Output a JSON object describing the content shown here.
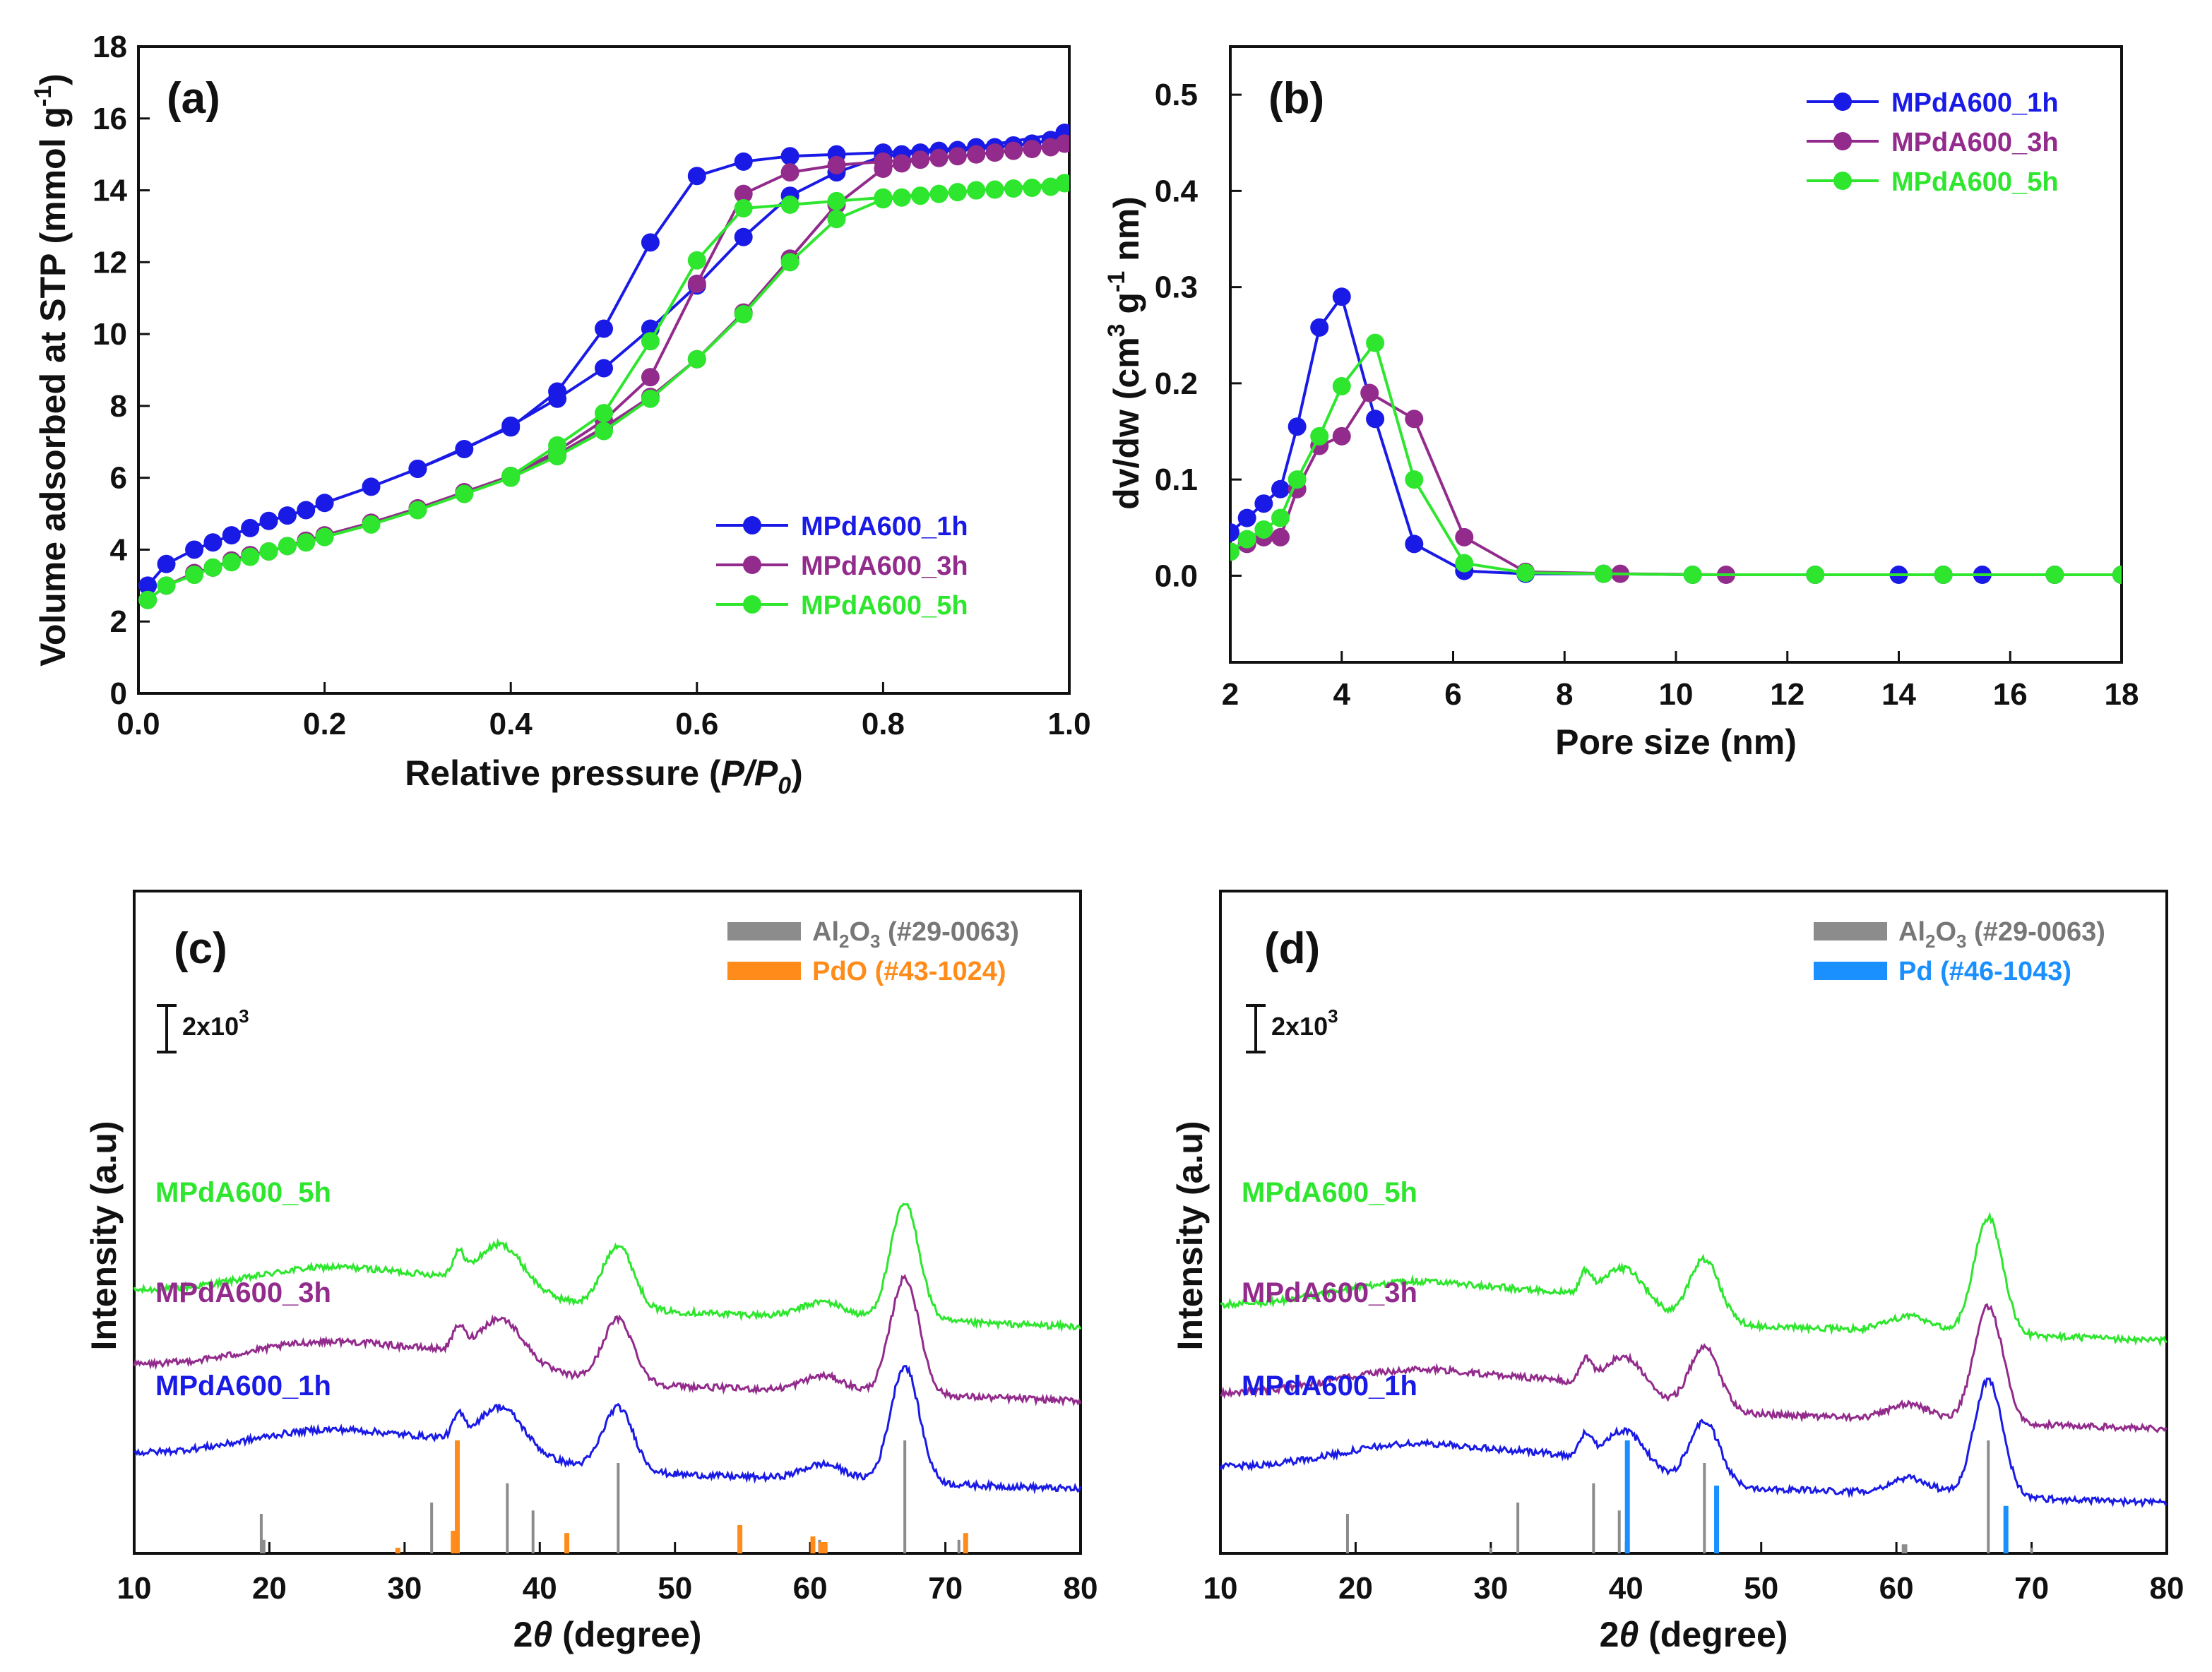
{
  "colors": {
    "blue": "#1a1ae6",
    "purple": "#922b8c",
    "green": "#2de62d",
    "gray": "#8c8c8c",
    "orange": "#ff8c1a",
    "sky": "#1a90ff"
  },
  "chart_data": [
    {
      "id": "a",
      "type": "line",
      "panel_label": "(a)",
      "xlabel": "Relative pressure (P/P0)",
      "xlabel_main": "Relative pressure (",
      "xlabel_italic": "P/P",
      "xlabel_sub": "0",
      "xlabel_end": ")",
      "ylabel": "Volume adsorbed at STP (mmol g-1)",
      "ylabel_main": "Volume adsorbed at STP (mmol g",
      "ylabel_sup": "-1",
      "ylabel_end": ")",
      "xlim": [
        0,
        1
      ],
      "ylim": [
        0,
        18
      ],
      "xticks": [
        "0.0",
        "0.2",
        "0.4",
        "0.6",
        "0.8",
        "1.0"
      ],
      "yticks": [
        "0",
        "2",
        "4",
        "6",
        "8",
        "10",
        "12",
        "14",
        "16",
        "18"
      ],
      "legend_position": "bottom-right",
      "series": [
        {
          "name": "MPdA600_1h",
          "color": "#1a1ae6",
          "adsorption": [
            [
              0.01,
              3.0
            ],
            [
              0.03,
              3.6
            ],
            [
              0.06,
              4.0
            ],
            [
              0.08,
              4.2
            ],
            [
              0.1,
              4.4
            ],
            [
              0.12,
              4.6
            ],
            [
              0.14,
              4.8
            ],
            [
              0.16,
              4.95
            ],
            [
              0.18,
              5.1
            ],
            [
              0.2,
              5.3
            ],
            [
              0.25,
              5.75
            ],
            [
              0.3,
              6.25
            ],
            [
              0.35,
              6.8
            ],
            [
              0.4,
              7.45
            ],
            [
              0.45,
              8.2
            ],
            [
              0.5,
              9.05
            ],
            [
              0.55,
              10.15
            ],
            [
              0.6,
              11.35
            ],
            [
              0.65,
              12.7
            ],
            [
              0.7,
              13.85
            ],
            [
              0.75,
              14.5
            ],
            [
              0.8,
              14.95
            ],
            [
              0.82,
              15.0
            ],
            [
              0.84,
              15.05
            ],
            [
              0.86,
              15.1
            ],
            [
              0.88,
              15.12
            ],
            [
              0.9,
              15.15
            ],
            [
              0.92,
              15.2
            ],
            [
              0.94,
              15.25
            ],
            [
              0.96,
              15.3
            ],
            [
              0.98,
              15.4
            ],
            [
              0.995,
              15.6
            ]
          ],
          "desorption": [
            [
              0.995,
              15.6
            ],
            [
              0.9,
              15.2
            ],
            [
              0.8,
              15.05
            ],
            [
              0.75,
              15.0
            ],
            [
              0.7,
              14.95
            ],
            [
              0.65,
              14.8
            ],
            [
              0.6,
              14.4
            ],
            [
              0.55,
              12.55
            ],
            [
              0.5,
              10.15
            ],
            [
              0.45,
              8.4
            ],
            [
              0.4,
              7.4
            ],
            [
              0.3,
              6.25
            ]
          ]
        },
        {
          "name": "MPdA600_3h",
          "color": "#922b8c",
          "adsorption": [
            [
              0.01,
              2.6
            ],
            [
              0.03,
              3.0
            ],
            [
              0.06,
              3.35
            ],
            [
              0.08,
              3.5
            ],
            [
              0.1,
              3.7
            ],
            [
              0.12,
              3.85
            ],
            [
              0.14,
              3.95
            ],
            [
              0.16,
              4.1
            ],
            [
              0.18,
              4.25
            ],
            [
              0.2,
              4.4
            ],
            [
              0.25,
              4.75
            ],
            [
              0.3,
              5.15
            ],
            [
              0.35,
              5.6
            ],
            [
              0.4,
              6.05
            ],
            [
              0.45,
              6.65
            ],
            [
              0.5,
              7.4
            ],
            [
              0.55,
              8.25
            ],
            [
              0.6,
              9.3
            ],
            [
              0.65,
              10.6
            ],
            [
              0.7,
              12.1
            ],
            [
              0.75,
              13.6
            ],
            [
              0.8,
              14.6
            ],
            [
              0.82,
              14.75
            ],
            [
              0.84,
              14.85
            ],
            [
              0.86,
              14.9
            ],
            [
              0.88,
              14.95
            ],
            [
              0.9,
              15.0
            ],
            [
              0.92,
              15.05
            ],
            [
              0.94,
              15.1
            ],
            [
              0.96,
              15.15
            ],
            [
              0.98,
              15.2
            ],
            [
              0.995,
              15.3
            ]
          ],
          "desorption": [
            [
              0.995,
              15.3
            ],
            [
              0.9,
              15.0
            ],
            [
              0.8,
              14.8
            ],
            [
              0.75,
              14.7
            ],
            [
              0.7,
              14.5
            ],
            [
              0.65,
              13.9
            ],
            [
              0.6,
              11.4
            ],
            [
              0.55,
              8.8
            ],
            [
              0.5,
              7.6
            ],
            [
              0.45,
              6.75
            ],
            [
              0.4,
              6.05
            ]
          ]
        },
        {
          "name": "MPdA600_5h",
          "color": "#2de62d",
          "adsorption": [
            [
              0.01,
              2.6
            ],
            [
              0.03,
              3.0
            ],
            [
              0.06,
              3.3
            ],
            [
              0.08,
              3.5
            ],
            [
              0.1,
              3.65
            ],
            [
              0.12,
              3.8
            ],
            [
              0.14,
              3.95
            ],
            [
              0.16,
              4.1
            ],
            [
              0.18,
              4.2
            ],
            [
              0.2,
              4.35
            ],
            [
              0.25,
              4.7
            ],
            [
              0.3,
              5.1
            ],
            [
              0.35,
              5.55
            ],
            [
              0.4,
              6.0
            ],
            [
              0.45,
              6.6
            ],
            [
              0.5,
              7.3
            ],
            [
              0.55,
              8.2
            ],
            [
              0.6,
              9.3
            ],
            [
              0.65,
              10.55
            ],
            [
              0.7,
              12.0
            ],
            [
              0.75,
              13.2
            ],
            [
              0.8,
              13.75
            ],
            [
              0.82,
              13.8
            ],
            [
              0.84,
              13.85
            ],
            [
              0.86,
              13.9
            ],
            [
              0.88,
              13.95
            ],
            [
              0.9,
              14.0
            ],
            [
              0.92,
              14.02
            ],
            [
              0.94,
              14.05
            ],
            [
              0.96,
              14.07
            ],
            [
              0.98,
              14.1
            ],
            [
              0.995,
              14.2
            ]
          ],
          "desorption": [
            [
              0.995,
              14.2
            ],
            [
              0.9,
              14.0
            ],
            [
              0.8,
              13.8
            ],
            [
              0.75,
              13.7
            ],
            [
              0.7,
              13.6
            ],
            [
              0.65,
              13.5
            ],
            [
              0.6,
              12.05
            ],
            [
              0.55,
              9.8
            ],
            [
              0.5,
              7.8
            ],
            [
              0.45,
              6.9
            ],
            [
              0.4,
              6.05
            ]
          ]
        }
      ]
    },
    {
      "id": "b",
      "type": "line",
      "panel_label": "(b)",
      "xlabel": "Pore size (nm)",
      "ylabel": "dv/dw (cm3 g-1 nm)",
      "ylabel_a": "dv/dw (cm",
      "ylabel_sup1": "3",
      "ylabel_b": " g",
      "ylabel_sup2": "-1",
      "ylabel_c": " nm)",
      "xlim": [
        2,
        18
      ],
      "ylim": [
        -0.09,
        0.55
      ],
      "xticks": [
        "2",
        "4",
        "6",
        "8",
        "10",
        "12",
        "14",
        "16",
        "18"
      ],
      "yticks": [
        "0.0",
        "0.1",
        "0.2",
        "0.3",
        "0.4",
        "0.5"
      ],
      "legend_position": "top-right",
      "series": [
        {
          "name": "MPdA600_1h",
          "color": "#1a1ae6",
          "points": [
            [
              2.0,
              0.045
            ],
            [
              2.3,
              0.06
            ],
            [
              2.6,
              0.075
            ],
            [
              2.9,
              0.09
            ],
            [
              3.2,
              0.155
            ],
            [
              3.6,
              0.258
            ],
            [
              4.0,
              0.29
            ],
            [
              4.6,
              0.163
            ],
            [
              5.3,
              0.033
            ],
            [
              6.2,
              0.005
            ],
            [
              7.3,
              0.002
            ],
            [
              8.7,
              0.002
            ],
            [
              10.3,
              0.001
            ],
            [
              12.5,
              0.001
            ],
            [
              14.0,
              0.001
            ],
            [
              14.8,
              0.001
            ],
            [
              15.5,
              0.001
            ],
            [
              16.8,
              0.001
            ],
            [
              18.0,
              0.001
            ]
          ]
        },
        {
          "name": "MPdA600_3h",
          "color": "#922b8c",
          "points": [
            [
              2.0,
              0.025
            ],
            [
              2.3,
              0.033
            ],
            [
              2.6,
              0.04
            ],
            [
              2.9,
              0.04
            ],
            [
              3.2,
              0.09
            ],
            [
              3.6,
              0.135
            ],
            [
              4.0,
              0.145
            ],
            [
              4.5,
              0.19
            ],
            [
              5.3,
              0.163
            ],
            [
              6.2,
              0.04
            ],
            [
              7.3,
              0.004
            ],
            [
              9.0,
              0.002
            ],
            [
              10.9,
              0.001
            ],
            [
              12.5,
              0.001
            ],
            [
              14.8,
              0.001
            ],
            [
              16.8,
              0.001
            ],
            [
              18.0,
              0.001
            ]
          ]
        },
        {
          "name": "MPdA600_5h",
          "color": "#2de62d",
          "points": [
            [
              2.0,
              0.025
            ],
            [
              2.3,
              0.038
            ],
            [
              2.6,
              0.048
            ],
            [
              2.9,
              0.06
            ],
            [
              3.2,
              0.1
            ],
            [
              3.6,
              0.145
            ],
            [
              4.0,
              0.197
            ],
            [
              4.6,
              0.242
            ],
            [
              5.3,
              0.1
            ],
            [
              6.2,
              0.013
            ],
            [
              7.3,
              0.003
            ],
            [
              8.7,
              0.002
            ],
            [
              10.3,
              0.001
            ],
            [
              12.5,
              0.001
            ],
            [
              14.8,
              0.001
            ],
            [
              16.8,
              0.001
            ],
            [
              18.0,
              0.001
            ]
          ]
        }
      ]
    },
    {
      "id": "c",
      "type": "line",
      "panel_label": "(c)",
      "xlabel": "2θ (degree)",
      "xlabel_theta": "θ",
      "xlabel_two": "2",
      "xlabel_rest": " (degree)",
      "ylabel": "Intensity (a.u)",
      "xlim": [
        10,
        80
      ],
      "xticks": [
        "10",
        "20",
        "30",
        "40",
        "50",
        "60",
        "70",
        "80"
      ],
      "scale_bar": "2x10³",
      "scale_main": "2x10",
      "scale_sup": "3",
      "legend_position": "top-right",
      "legend": [
        {
          "name": "Al2O3 (#29-0063)",
          "a": "Al",
          "s1": "2",
          "b": "O",
          "s2": "3",
          "c": " (#29-0063)",
          "color": "#8c8c8c"
        },
        {
          "name": "PdO (#43-1024)",
          "a": "PdO (#43-1024)",
          "s1": "",
          "b": "",
          "s2": "",
          "c": "",
          "color": "#ff8c1a"
        }
      ],
      "series": [
        {
          "name": "MPdA600_5h",
          "color": "#2de62d"
        },
        {
          "name": "MPdA600_3h",
          "color": "#922b8c"
        },
        {
          "name": "MPdA600_1h",
          "color": "#1a1ae6"
        }
      ],
      "peaks": [
        34.0,
        37.2,
        45.8,
        67.0
      ],
      "ref_lines": [
        {
          "phase": "Al2O3",
          "color": "#8c8c8c",
          "positions": [
            19.4,
            19.6,
            32.0,
            37.6,
            39.5,
            45.8,
            60.7,
            67.0,
            71.0
          ],
          "intensities": [
            0.35,
            0.12,
            0.45,
            0.62,
            0.38,
            0.8,
            0.12,
            1.0,
            0.12
          ]
        },
        {
          "phase": "PdO",
          "color": "#ff8c1a",
          "positions": [
            29.5,
            33.6,
            33.9,
            42.0,
            54.8,
            60.2,
            60.8,
            61.1,
            71.5
          ],
          "intensities": [
            0.05,
            0.2,
            1.0,
            0.18,
            0.25,
            0.15,
            0.1,
            0.1,
            0.18
          ]
        }
      ]
    },
    {
      "id": "d",
      "type": "line",
      "panel_label": "(d)",
      "xlabel": "2θ (degree)",
      "xlabel_theta": "θ",
      "xlabel_two": "2",
      "xlabel_rest": " (degree)",
      "ylabel": "Intensity (a.u)",
      "xlim": [
        10,
        80
      ],
      "xticks": [
        "10",
        "20",
        "30",
        "40",
        "50",
        "60",
        "70",
        "80"
      ],
      "scale_bar": "2x10³",
      "scale_main": "2x10",
      "scale_sup": "3",
      "legend_position": "top-right",
      "legend": [
        {
          "name": "Al2O3 (#29-0063)",
          "a": "Al",
          "s1": "2",
          "b": "O",
          "s2": "3",
          "c": " (#29-0063)",
          "color": "#8c8c8c"
        },
        {
          "name": "Pd (#46-1043)",
          "a": "Pd (#46-1043)",
          "s1": "",
          "b": "",
          "s2": "",
          "c": "",
          "color": "#1a90ff"
        }
      ],
      "series": [
        {
          "name": "MPdA600_5h",
          "color": "#2de62d"
        },
        {
          "name": "MPdA600_3h",
          "color": "#922b8c"
        },
        {
          "name": "MPdA600_1h",
          "color": "#1a1ae6"
        }
      ],
      "peaks": [
        37.0,
        40.0,
        45.8,
        66.8
      ],
      "ref_lines": [
        {
          "phase": "Al2O3",
          "color": "#8c8c8c",
          "positions": [
            19.4,
            30.0,
            32.0,
            37.6,
            39.5,
            45.8,
            60.5,
            60.7,
            66.8,
            70.0
          ],
          "intensities": [
            0.35,
            0.05,
            0.45,
            0.62,
            0.38,
            0.8,
            0.08,
            0.08,
            1.0,
            0.05
          ]
        },
        {
          "phase": "Pd",
          "color": "#1a90ff",
          "positions": [
            40.1,
            46.7,
            68.1
          ],
          "intensities": [
            1.0,
            0.6,
            0.42
          ]
        }
      ]
    }
  ]
}
